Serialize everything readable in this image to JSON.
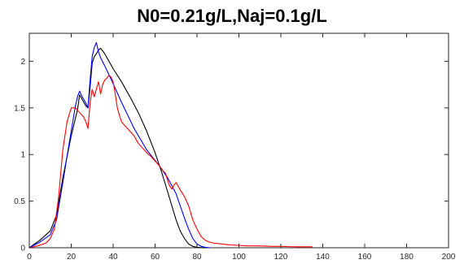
{
  "chart_data": {
    "type": "line",
    "title": "N0=0.21g/L,Naj=0.1g/L",
    "xlabel": "",
    "ylabel": "",
    "xlim": [
      0,
      200
    ],
    "ylim": [
      0,
      2.3
    ],
    "x_ticks": [
      0,
      20,
      40,
      60,
      80,
      100,
      120,
      140,
      160,
      180,
      200
    ],
    "y_ticks": [
      0,
      0.5,
      1,
      1.5,
      2
    ],
    "x_tick_labels": [
      "0",
      "20",
      "40",
      "60",
      "80",
      "100",
      "120",
      "140",
      "160",
      "180",
      "200"
    ],
    "y_tick_labels": [
      "0",
      "0.5",
      "1",
      "1.5",
      "2"
    ],
    "grid": false,
    "series": [
      {
        "color": "#000000",
        "x": [
          0,
          5,
          10,
          13,
          16,
          20,
          23,
          24,
          25,
          27,
          28,
          29,
          30,
          31,
          32,
          33,
          34,
          36,
          38,
          40,
          44,
          48,
          52,
          56,
          60,
          63,
          66,
          68,
          70,
          72,
          74,
          76,
          78,
          80,
          82,
          84,
          86
        ],
        "y": [
          0,
          0.08,
          0.18,
          0.35,
          0.75,
          1.2,
          1.48,
          1.64,
          1.6,
          1.52,
          1.5,
          1.72,
          1.98,
          2.05,
          2.08,
          2.12,
          2.14,
          2.08,
          2.0,
          1.92,
          1.78,
          1.62,
          1.45,
          1.25,
          1.02,
          0.82,
          0.6,
          0.45,
          0.3,
          0.18,
          0.1,
          0.04,
          0.015,
          0.005,
          0.002,
          0.001,
          0
        ]
      },
      {
        "color": "#0000ff",
        "x": [
          0,
          5,
          10,
          13,
          16,
          18,
          20,
          22,
          23,
          24,
          25,
          27,
          28,
          29,
          30,
          31,
          32,
          33,
          34,
          36,
          40,
          44,
          50,
          56,
          62,
          66,
          70,
          72,
          74,
          76,
          78,
          80,
          82,
          84,
          86
        ],
        "y": [
          0,
          0.06,
          0.14,
          0.3,
          0.7,
          0.98,
          1.25,
          1.52,
          1.62,
          1.68,
          1.63,
          1.55,
          1.5,
          1.8,
          2.05,
          2.15,
          2.2,
          2.1,
          2.04,
          1.95,
          1.76,
          1.56,
          1.28,
          1.05,
          0.88,
          0.75,
          0.58,
          0.45,
          0.32,
          0.2,
          0.1,
          0.04,
          0.015,
          0.005,
          0
        ]
      },
      {
        "color": "#ff0000",
        "x": [
          0,
          4,
          8,
          10,
          12,
          14,
          16,
          18,
          20,
          22,
          24,
          26,
          27,
          28,
          29,
          30,
          31,
          32,
          33,
          34,
          35,
          36,
          37,
          38,
          39,
          40,
          41,
          42,
          43,
          44,
          46,
          48,
          50,
          52,
          54,
          56,
          58,
          60,
          62,
          63,
          64,
          65,
          66,
          67,
          68,
          69,
          70,
          72,
          74,
          76,
          78,
          80,
          82,
          84,
          86,
          88,
          90,
          92,
          94,
          96,
          98,
          100,
          104,
          108,
          112,
          116,
          120,
          124,
          128,
          132,
          135
        ],
        "y": [
          0,
          0.02,
          0.05,
          0.1,
          0.2,
          0.55,
          1.05,
          1.35,
          1.5,
          1.5,
          1.45,
          1.4,
          1.35,
          1.28,
          1.55,
          1.7,
          1.62,
          1.7,
          1.78,
          1.65,
          1.75,
          1.8,
          1.82,
          1.85,
          1.83,
          1.78,
          1.65,
          1.5,
          1.42,
          1.35,
          1.3,
          1.25,
          1.2,
          1.12,
          1.07,
          1.02,
          0.98,
          0.93,
          0.88,
          0.85,
          0.82,
          0.8,
          0.72,
          0.66,
          0.63,
          0.67,
          0.7,
          0.62,
          0.55,
          0.45,
          0.3,
          0.2,
          0.12,
          0.08,
          0.06,
          0.05,
          0.045,
          0.04,
          0.035,
          0.03,
          0.028,
          0.025,
          0.02,
          0.02,
          0.018,
          0.015,
          0.015,
          0.012,
          0.01,
          0.01,
          0.01
        ]
      }
    ]
  }
}
